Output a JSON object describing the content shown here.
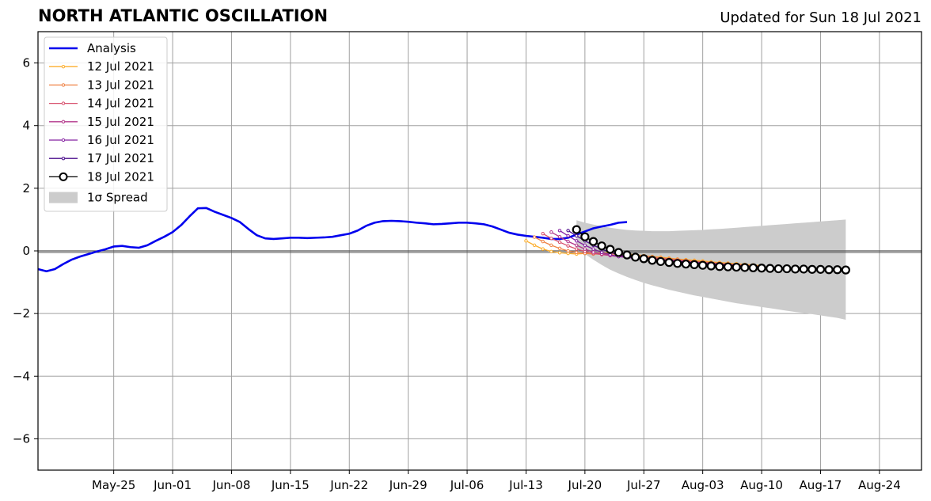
{
  "chart_data": {
    "type": "line",
    "title": "NORTH ATLANTIC OSCILLATION",
    "subtitle": "Updated for Sun 18 Jul 2021",
    "xlabel": "",
    "ylabel": "",
    "xlim": [
      "2021-05-16",
      "2021-08-29"
    ],
    "ylim": [
      -7,
      7
    ],
    "grid": true,
    "legend_position": "top-left",
    "x_ticks": [
      "May-25",
      "Jun-01",
      "Jun-08",
      "Jun-15",
      "Jun-22",
      "Jun-29",
      "Jul-06",
      "Jul-13",
      "Jul-20",
      "Jul-27",
      "Aug-03",
      "Aug-10",
      "Aug-17",
      "Aug-24"
    ],
    "x_tick_dates": [
      "2021-05-25",
      "2021-06-01",
      "2021-06-08",
      "2021-06-15",
      "2021-06-22",
      "2021-06-29",
      "2021-07-06",
      "2021-07-13",
      "2021-07-20",
      "2021-07-27",
      "2021-08-03",
      "2021-08-10",
      "2021-08-17",
      "2021-08-24"
    ],
    "y_ticks": [
      "−6",
      "−4",
      "−2",
      "0",
      "2",
      "4",
      "6"
    ],
    "y_tick_values": [
      -6,
      -4,
      -2,
      0,
      2,
      4,
      6
    ],
    "analysis": {
      "name": "Analysis",
      "color": "#0000ee",
      "start": "2021-05-16",
      "values": [
        -0.58,
        -0.65,
        -0.58,
        -0.42,
        -0.28,
        -0.18,
        -0.1,
        -0.02,
        0.05,
        0.14,
        0.16,
        0.12,
        0.1,
        0.18,
        0.32,
        0.45,
        0.6,
        0.82,
        1.1,
        1.36,
        1.37,
        1.25,
        1.15,
        1.05,
        0.92,
        0.7,
        0.5,
        0.4,
        0.38,
        0.4,
        0.42,
        0.42,
        0.41,
        0.42,
        0.43,
        0.45,
        0.5,
        0.55,
        0.65,
        0.8,
        0.9,
        0.95,
        0.96,
        0.95,
        0.93,
        0.9,
        0.88,
        0.85,
        0.86,
        0.88,
        0.9,
        0.9,
        0.88,
        0.85,
        0.78,
        0.68,
        0.58,
        0.52,
        0.48,
        0.45,
        0.42,
        0.38,
        0.38,
        0.42,
        0.52,
        0.62,
        0.72,
        0.78,
        0.83,
        0.9,
        0.92
      ]
    },
    "forecasts": [
      {
        "name": "12 Jul 2021",
        "color": "#fcae2d",
        "start": "2021-07-13",
        "values": [
          0.32,
          0.18,
          0.06,
          -0.02,
          -0.06,
          -0.08,
          -0.1,
          -0.08,
          -0.07,
          -0.06,
          -0.07,
          -0.08,
          -0.1,
          -0.12,
          -0.15,
          -0.18,
          -0.2,
          -0.23,
          -0.26,
          -0.28,
          -0.3,
          -0.32,
          -0.35,
          -0.37,
          -0.39,
          -0.41,
          -0.43,
          -0.45,
          -0.47
        ]
      },
      {
        "name": "13 Jul 2021",
        "color": "#ef8346",
        "start": "2021-07-14",
        "values": [
          0.44,
          0.3,
          0.18,
          0.08,
          0.0,
          -0.05,
          -0.08,
          -0.1,
          -0.1,
          -0.1,
          -0.11,
          -0.12,
          -0.14,
          -0.16,
          -0.19,
          -0.22,
          -0.25,
          -0.27,
          -0.3,
          -0.33,
          -0.35,
          -0.37,
          -0.39,
          -0.41,
          -0.43,
          -0.45,
          -0.47,
          -0.49
        ]
      },
      {
        "name": "14 Jul 2021",
        "color": "#d8506d",
        "start": "2021-07-15",
        "values": [
          0.55,
          0.4,
          0.28,
          0.16,
          0.06,
          -0.02,
          -0.08,
          -0.12,
          -0.14,
          -0.16,
          -0.18,
          -0.19,
          -0.2,
          -0.22,
          -0.25,
          -0.27,
          -0.3,
          -0.32,
          -0.35,
          -0.37,
          -0.39,
          -0.41,
          -0.43,
          -0.45,
          -0.47,
          -0.49,
          -0.5
        ]
      },
      {
        "name": "15 Jul 2021",
        "color": "#b3378b",
        "start": "2021-07-16",
        "values": [
          0.6,
          0.45,
          0.3,
          0.18,
          0.06,
          -0.04,
          -0.1,
          -0.15,
          -0.18,
          -0.2,
          -0.22,
          -0.24,
          -0.26,
          -0.28,
          -0.3,
          -0.32,
          -0.34,
          -0.36,
          -0.38,
          -0.4,
          -0.42,
          -0.44,
          -0.46,
          -0.48,
          -0.5,
          -0.52
        ]
      },
      {
        "name": "16 Jul 2021",
        "color": "#8420a0",
        "start": "2021-07-17",
        "values": [
          0.65,
          0.48,
          0.32,
          0.18,
          0.06,
          -0.05,
          -0.12,
          -0.18,
          -0.21,
          -0.24,
          -0.26,
          -0.28,
          -0.3,
          -0.32,
          -0.34,
          -0.36,
          -0.38,
          -0.4,
          -0.42,
          -0.44,
          -0.46,
          -0.48,
          -0.5,
          -0.52,
          -0.54
        ]
      },
      {
        "name": "17 Jul 2021",
        "color": "#4a0c8c",
        "start": "2021-07-18",
        "values": [
          0.65,
          0.48,
          0.32,
          0.18,
          0.06,
          -0.05,
          -0.12,
          -0.18,
          -0.22,
          -0.25,
          -0.28,
          -0.3,
          -0.32,
          -0.34,
          -0.36,
          -0.38,
          -0.4,
          -0.42,
          -0.44,
          -0.46,
          -0.48,
          -0.5,
          -0.52,
          -0.54
        ]
      },
      {
        "name": "18 Jul 2021",
        "color": "#000000",
        "start": "2021-07-19",
        "values": [
          0.68,
          0.45,
          0.3,
          0.16,
          0.05,
          -0.05,
          -0.13,
          -0.2,
          -0.25,
          -0.3,
          -0.34,
          -0.37,
          -0.4,
          -0.42,
          -0.44,
          -0.46,
          -0.48,
          -0.5,
          -0.51,
          -0.52,
          -0.53,
          -0.54,
          -0.55,
          -0.56,
          -0.57,
          -0.57,
          -0.58,
          -0.58,
          -0.59,
          -0.59,
          -0.6,
          -0.6,
          -0.61
        ]
      }
    ],
    "spread": {
      "name": "1σ Spread",
      "color": "#cccccc",
      "start": "2021-07-19",
      "upper": [
        0.98,
        0.9,
        0.84,
        0.79,
        0.74,
        0.7,
        0.67,
        0.65,
        0.64,
        0.63,
        0.63,
        0.63,
        0.64,
        0.65,
        0.66,
        0.67,
        0.69,
        0.7,
        0.72,
        0.74,
        0.76,
        0.78,
        0.8,
        0.82,
        0.84,
        0.86,
        0.88,
        0.9,
        0.92,
        0.94,
        0.96,
        0.98,
        1.0
      ],
      "lower": [
        0.1,
        -0.1,
        -0.28,
        -0.45,
        -0.6,
        -0.72,
        -0.83,
        -0.93,
        -1.02,
        -1.1,
        -1.17,
        -1.24,
        -1.3,
        -1.36,
        -1.42,
        -1.47,
        -1.52,
        -1.57,
        -1.62,
        -1.67,
        -1.71,
        -1.75,
        -1.79,
        -1.83,
        -1.87,
        -1.91,
        -1.95,
        -1.98,
        -2.02,
        -2.06,
        -2.1,
        -2.14,
        -2.2
      ]
    }
  }
}
